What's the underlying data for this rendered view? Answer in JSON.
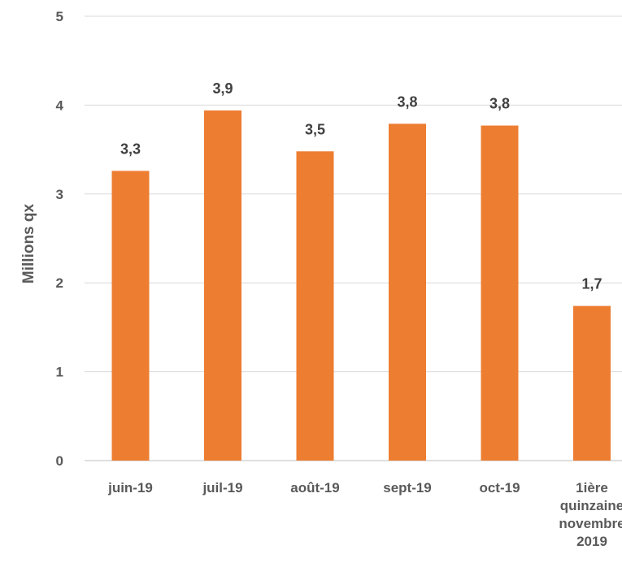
{
  "chart_data": {
    "type": "bar",
    "title": "",
    "xlabel": "",
    "ylabel": "Millions qx",
    "ylim": [
      0,
      5
    ],
    "yticks": [
      0,
      1,
      2,
      3,
      4,
      5
    ],
    "grid": true,
    "categories": [
      "juin-19",
      "juil-19",
      "août-19",
      "sept-19",
      "oct-19",
      "1ière quinzaine novembre 2019"
    ],
    "values": [
      3.26,
      3.94,
      3.48,
      3.79,
      3.77,
      1.74
    ],
    "data_labels": [
      "3,3",
      "3,9",
      "3,5",
      "3,8",
      "3,8",
      "1,7"
    ],
    "bar_color": "#ED7D31",
    "grid_color": "#D9D9D9",
    "text_color": "#595959"
  }
}
